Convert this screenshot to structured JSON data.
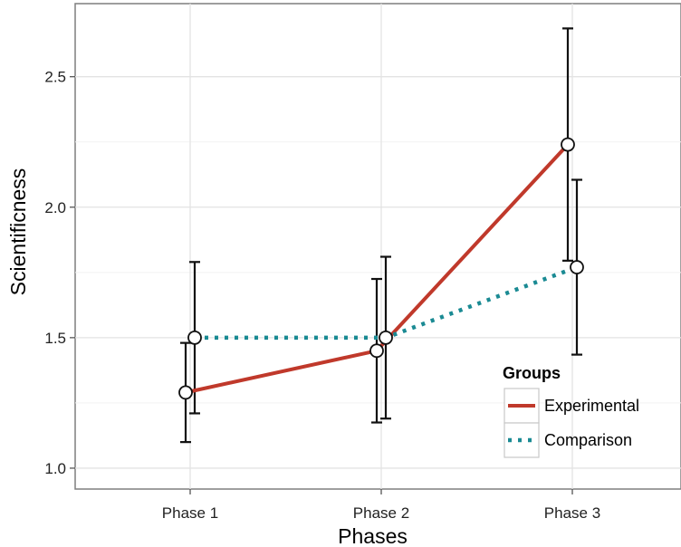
{
  "chart_data": {
    "type": "line",
    "xlabel": "Phases",
    "ylabel": "Scientificness",
    "categories": [
      "Phase 1",
      "Phase 2",
      "Phase 3"
    ],
    "ylim": [
      0.92,
      2.78
    ],
    "yticks": [
      1.0,
      1.5,
      2.0,
      2.5
    ],
    "ytick_labels": [
      "1.0",
      "1.5",
      "2.0",
      "2.5"
    ],
    "grid": true,
    "legend": {
      "title": "Groups",
      "position": "bottom-right"
    },
    "series": [
      {
        "name": "Experimental",
        "color": "#c0392b",
        "line_style": "solid",
        "values": [
          1.29,
          1.45,
          2.24
        ],
        "error_low": [
          1.1,
          1.175,
          1.795
        ],
        "error_high": [
          1.48,
          1.725,
          2.685
        ]
      },
      {
        "name": "Comparison",
        "color": "#1a8a93",
        "line_style": "dotted",
        "values": [
          1.5,
          1.5,
          1.77
        ],
        "error_low": [
          1.21,
          1.19,
          1.435
        ],
        "error_high": [
          1.79,
          1.81,
          2.105
        ]
      }
    ]
  }
}
